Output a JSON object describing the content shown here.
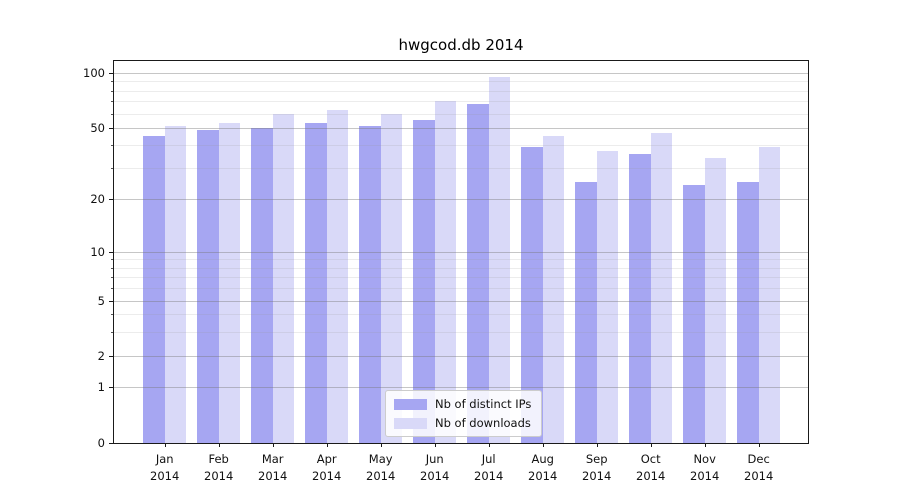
{
  "title": "hwgcod.db 2014",
  "chart_data": {
    "type": "bar",
    "categories": [
      "Jan",
      "Feb",
      "Mar",
      "Apr",
      "May",
      "Jun",
      "Jul",
      "Aug",
      "Sep",
      "Oct",
      "Nov",
      "Dec"
    ],
    "year_label": "2014",
    "series": [
      {
        "name": "Nb of distinct IPs",
        "color": "#a6a6f2",
        "values": [
          45,
          49,
          50,
          53,
          51,
          55,
          68,
          39,
          25,
          36,
          24,
          25
        ]
      },
      {
        "name": "Nb of downloads",
        "color": "#d9d9f8",
        "values": [
          51,
          53,
          60,
          63,
          60,
          70,
          95,
          45,
          37,
          47,
          34,
          39
        ]
      }
    ],
    "yscale": "symlog",
    "yticks": [
      0,
      1,
      2,
      5,
      10,
      20,
      50,
      100
    ],
    "yticks_minor": [
      3,
      4,
      6,
      7,
      8,
      9,
      30,
      40,
      60,
      70,
      80,
      90
    ],
    "ylim": [
      0,
      119
    ],
    "grid": true,
    "legend_position": "lower center"
  }
}
